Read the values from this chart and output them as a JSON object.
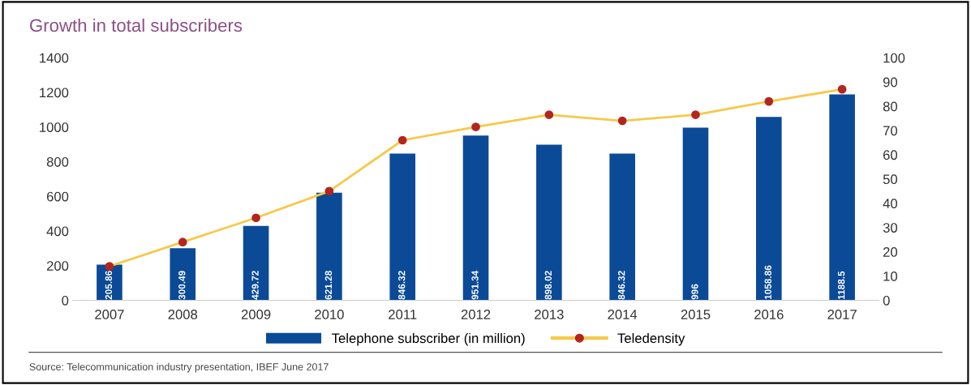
{
  "chart_data": {
    "type": "bar",
    "title": "Growth in total subscribers",
    "categories": [
      "2007",
      "2008",
      "2009",
      "2010",
      "2011",
      "2012",
      "2013",
      "2014",
      "2015",
      "2016",
      "2017"
    ],
    "series": [
      {
        "name": "Telephone subscriber (in million)",
        "color": "#0b4a97",
        "values": [
          205.86,
          300.49,
          429.72,
          621.28,
          846.32,
          951.34,
          898.02,
          846.32,
          996,
          1058.86,
          1188.5
        ],
        "value_labels": [
          "205.86",
          "300.49",
          "429.72",
          "621.28",
          "846.32",
          "951.34",
          "898.02",
          "846.32",
          "996",
          "1058.86",
          "1188.5"
        ]
      },
      {
        "name": "Teledensity",
        "type": "line",
        "axis": "y2",
        "color": "#f6c94a",
        "colors": [
          "#b3261e",
          "#b3261e",
          "#b3261e",
          "#b3261e",
          "#b3261e",
          "#b3261e",
          "#b3261e",
          "#b3261e",
          "#b3261e",
          "#b3261e",
          "#b3261e"
        ],
        "marker": "circle",
        "values": [
          14,
          24,
          34,
          45,
          66,
          71.5,
          76.5,
          74,
          76.5,
          82,
          87
        ]
      }
    ],
    "ylim": [
      0,
      1400
    ],
    "yticks": [
      0,
      200,
      400,
      600,
      800,
      1000,
      1200,
      1400
    ],
    "y2lim": [
      0,
      100
    ],
    "y2ticks": [
      0,
      10,
      20,
      30,
      40,
      50,
      60,
      70,
      80,
      90,
      100
    ],
    "grid": false,
    "legend": "bottom",
    "annotations": [
      "Source: Telecommunication industry presentation, IBEF June 2017"
    ]
  }
}
